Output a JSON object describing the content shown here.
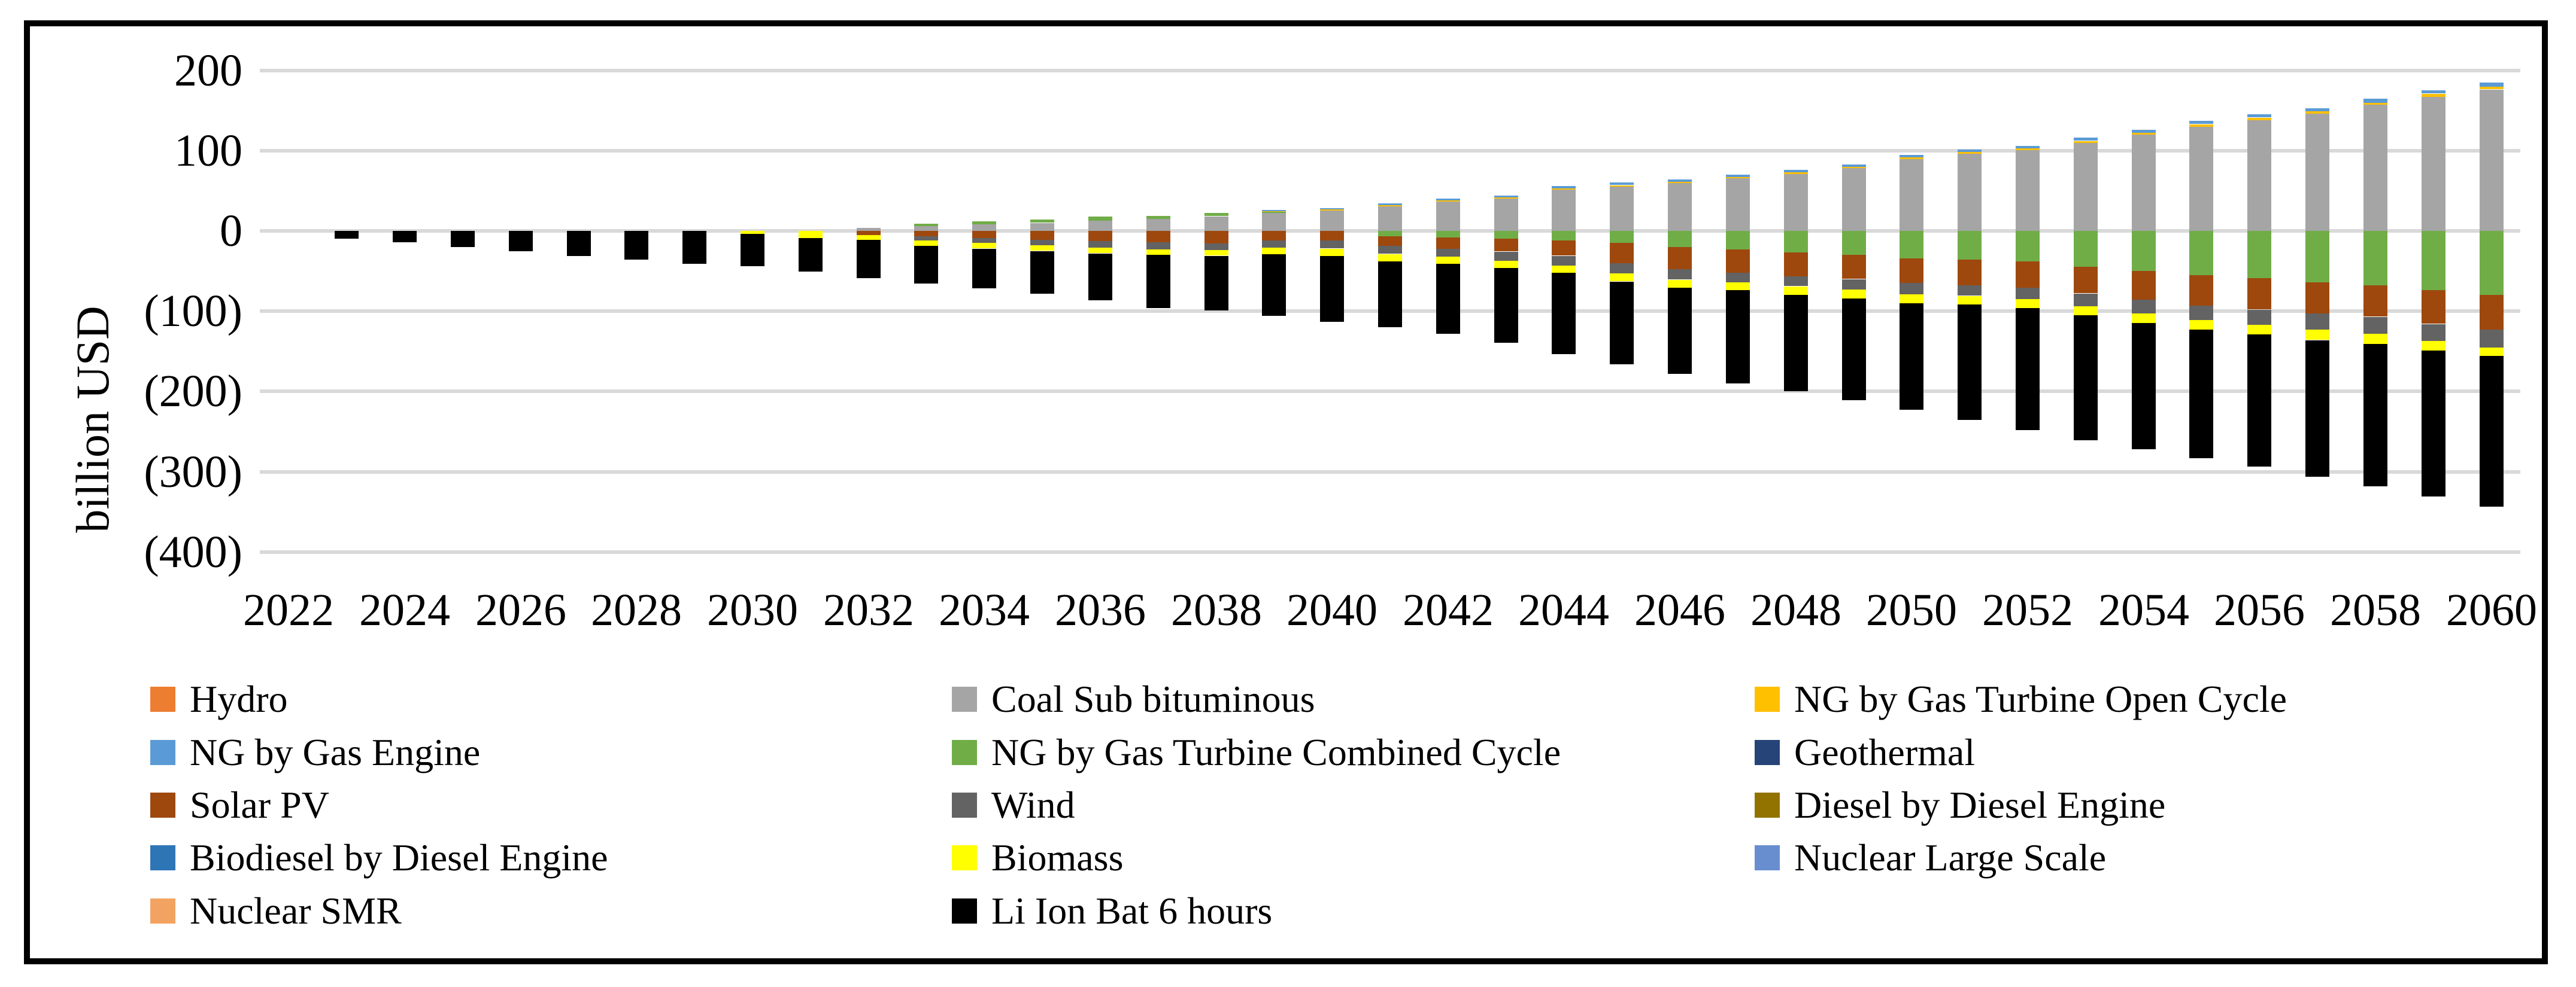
{
  "figure": {
    "background_color": "#ffffff",
    "border_color": "#000000",
    "gridline_color": "#d9d9d9",
    "text_color": "#000000"
  },
  "chart_data": {
    "type": "bar",
    "stacked": true,
    "title": "",
    "xlabel": "",
    "ylabel": "billion USD",
    "ylim": [
      -400,
      200
    ],
    "ytick_interval": 100,
    "ytick_values": [
      200,
      100,
      0,
      -100,
      -200,
      -300,
      -400
    ],
    "ytick_labels": [
      "200",
      "100",
      "0",
      "(100)",
      "(200)",
      "(300)",
      "(400)"
    ],
    "grid": "horizontal",
    "legend_position": "bottom",
    "categories": [
      2022,
      2023,
      2024,
      2025,
      2026,
      2027,
      2028,
      2029,
      2030,
      2031,
      2032,
      2033,
      2034,
      2035,
      2036,
      2037,
      2038,
      2039,
      2040,
      2041,
      2042,
      2043,
      2044,
      2045,
      2046,
      2047,
      2048,
      2049,
      2050,
      2051,
      2052,
      2053,
      2054,
      2055,
      2056,
      2057,
      2058,
      2059,
      2060
    ],
    "xtick_labels": [
      "2022",
      "2024",
      "2026",
      "2028",
      "2030",
      "2032",
      "2034",
      "2036",
      "2038",
      "2040",
      "2042",
      "2044",
      "2046",
      "2048",
      "2050",
      "2052",
      "2054",
      "2056",
      "2058",
      "2060"
    ],
    "series": [
      {
        "name": "Hydro",
        "color": "#ED7D31",
        "values": [
          0,
          0,
          0,
          0,
          0,
          0,
          0,
          0,
          0,
          0,
          0,
          0,
          0,
          0,
          0,
          0,
          0,
          0,
          0,
          0,
          0,
          0,
          0,
          0,
          0,
          0,
          0,
          0,
          0,
          0,
          0,
          0,
          0,
          0,
          0,
          0,
          0,
          0,
          0
        ]
      },
      {
        "name": "Coal Sub bituminous",
        "color": "#A5A5A5",
        "values": [
          0,
          0,
          0,
          0,
          0,
          0,
          0,
          0,
          0,
          0,
          4,
          6,
          8,
          10,
          13,
          15,
          18,
          23,
          26,
          31,
          37,
          41,
          52,
          56,
          60,
          66,
          71,
          79,
          90,
          96,
          101,
          110,
          120,
          130,
          138,
          146,
          157,
          167,
          176
        ]
      },
      {
        "name": "NG by Gas Turbine Combined Cycle",
        "color": "#70AD47",
        "values": [
          0,
          0,
          0,
          0,
          0,
          0,
          0,
          0,
          0,
          0,
          0,
          3,
          4,
          4,
          5,
          4,
          4,
          1,
          0,
          -7,
          -8,
          -10,
          -12,
          -15,
          -20,
          -23,
          -27,
          -30,
          -34,
          -36,
          -38,
          -45,
          -50,
          -55,
          -59,
          -64,
          -68,
          -74,
          -80
        ]
      },
      {
        "name": "NG by Gas Turbine Open Cycle",
        "color": "#FFC000",
        "values": [
          0,
          0,
          0,
          0,
          0,
          0,
          0,
          0,
          0,
          0,
          0,
          0,
          0,
          0,
          0,
          0,
          0,
          1,
          1,
          1,
          1,
          1,
          1,
          1,
          1,
          1,
          2,
          1,
          2,
          2,
          2,
          2,
          2,
          3,
          3,
          3,
          3,
          4,
          4
        ]
      },
      {
        "name": "NG by Gas Engine",
        "color": "#5B9BD5",
        "values": [
          0,
          0,
          0,
          0,
          0,
          0,
          0,
          0,
          0,
          0,
          0,
          0,
          0,
          0,
          0,
          0,
          0,
          1,
          1,
          2,
          2,
          2,
          3,
          3,
          3,
          3,
          3,
          3,
          3,
          3,
          3,
          4,
          4,
          4,
          4,
          4,
          5,
          4,
          5
        ]
      },
      {
        "name": "Geothermal",
        "color": "#264478",
        "values": [
          0,
          0,
          0,
          0,
          0,
          0,
          0,
          0,
          0,
          0,
          0,
          0,
          0,
          0,
          0,
          0,
          0,
          0,
          0,
          0,
          0,
          0,
          0,
          0,
          0,
          0,
          0,
          0,
          0,
          0,
          0,
          0,
          0,
          0,
          0,
          0,
          0,
          0,
          0
        ]
      },
      {
        "name": "Solar PV",
        "color": "#9E480E",
        "values": [
          0,
          0,
          0,
          0,
          0,
          0,
          0,
          0,
          0,
          0,
          -5,
          -7,
          -9,
          -11,
          -13,
          -14,
          -16,
          -12,
          -12,
          -12,
          -14,
          -16,
          -19,
          -25,
          -28,
          -29,
          -30,
          -30,
          -31,
          -32,
          -33,
          -33,
          -36,
          -38,
          -39,
          -39,
          -39,
          -42,
          -43
        ]
      },
      {
        "name": "Wind",
        "color": "#636363",
        "values": [
          0,
          0,
          0,
          0,
          0,
          0,
          0,
          0,
          0,
          0,
          0,
          -5,
          -6,
          -7,
          -8,
          -9,
          -8,
          -9,
          -10,
          -10,
          -10,
          -11,
          -12,
          -13,
          -13,
          -12,
          -12,
          -13,
          -14,
          -13,
          -14,
          -16,
          -17,
          -18,
          -19,
          -20,
          -21,
          -21,
          -22
        ]
      },
      {
        "name": "Diesel by Diesel Engine",
        "color": "#937300",
        "values": [
          0,
          0,
          0,
          0,
          0,
          0,
          0,
          0,
          0,
          0,
          0,
          0,
          0,
          0,
          0,
          0,
          0,
          0,
          0,
          0,
          0,
          0,
          0,
          0,
          0,
          0,
          0,
          0,
          0,
          0,
          0,
          0,
          0,
          0,
          0,
          0,
          0,
          0,
          0
        ]
      },
      {
        "name": "Biodiesel by Diesel Engine",
        "color": "#2E75B6",
        "values": [
          0,
          0,
          0,
          0,
          0,
          0,
          0,
          0,
          0,
          0,
          0,
          0,
          0,
          0,
          0,
          0,
          0,
          0,
          0,
          0,
          0,
          0,
          0,
          0,
          0,
          0,
          0,
          0,
          0,
          0,
          0,
          0,
          0,
          0,
          0,
          0,
          0,
          0,
          0
        ]
      },
      {
        "name": "Biomass",
        "color": "#FFFF00",
        "values": [
          0,
          0,
          0,
          0,
          0,
          0,
          0,
          0,
          -4,
          -9,
          -6,
          -7,
          -7,
          -7,
          -7,
          -7,
          -7,
          -8,
          -9,
          -9,
          -9,
          -9,
          -9,
          -10,
          -10,
          -10,
          -11,
          -11,
          -11,
          -11,
          -11,
          -11,
          -12,
          -12,
          -12,
          -13,
          -13,
          -12,
          -11
        ]
      },
      {
        "name": "Nuclear Large Scale",
        "color": "#698ED0",
        "values": [
          0,
          0,
          0,
          0,
          0,
          0,
          0,
          0,
          0,
          0,
          0,
          0,
          0,
          0,
          0,
          0,
          0,
          0,
          0,
          0,
          0,
          0,
          0,
          0,
          0,
          0,
          0,
          0,
          0,
          0,
          0,
          0,
          0,
          0,
          0,
          0,
          0,
          0,
          0
        ]
      },
      {
        "name": "Nuclear SMR",
        "color": "#F3A361",
        "values": [
          0,
          0,
          0,
          0,
          0,
          0,
          0,
          0,
          0,
          0,
          0,
          0,
          0,
          0,
          0,
          0,
          0,
          0,
          0,
          0,
          0,
          0,
          0,
          0,
          0,
          0,
          0,
          0,
          0,
          0,
          0,
          0,
          0,
          0,
          0,
          0,
          0,
          0,
          0
        ]
      },
      {
        "name": "Li Ion Bat 6 hours",
        "color": "#000000",
        "values": [
          0,
          -10,
          -14,
          -20,
          -25,
          -31,
          -36,
          -41,
          -40,
          -42,
          -48,
          -47,
          -49,
          -53,
          -58,
          -66,
          -68,
          -77,
          -82,
          -82,
          -87,
          -93,
          -101,
          -103,
          -107,
          -116,
          -120,
          -127,
          -133,
          -144,
          -152,
          -156,
          -157,
          -160,
          -165,
          -170,
          -177,
          -182,
          -188
        ]
      }
    ],
    "legend_order": [
      "Hydro",
      "Coal Sub bituminous",
      "NG by Gas Turbine Open Cycle",
      "NG by Gas Engine",
      "NG by Gas Turbine Combined Cycle",
      "Geothermal",
      "Solar PV",
      "Wind",
      "Diesel by Diesel Engine",
      "Biodiesel by Diesel Engine",
      "Biomass",
      "Nuclear Large Scale",
      "Nuclear SMR",
      "Li Ion Bat 6 hours"
    ],
    "legend_columns": 3
  }
}
